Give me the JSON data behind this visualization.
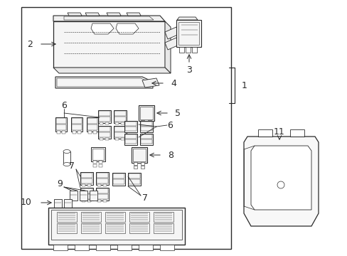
{
  "bg_color": "#ffffff",
  "lc": "#2a2a2a",
  "lw_main": 0.9,
  "lw_thin": 0.5,
  "fontsize": 8,
  "fig_w": 4.89,
  "fig_h": 3.6,
  "dpi": 100
}
